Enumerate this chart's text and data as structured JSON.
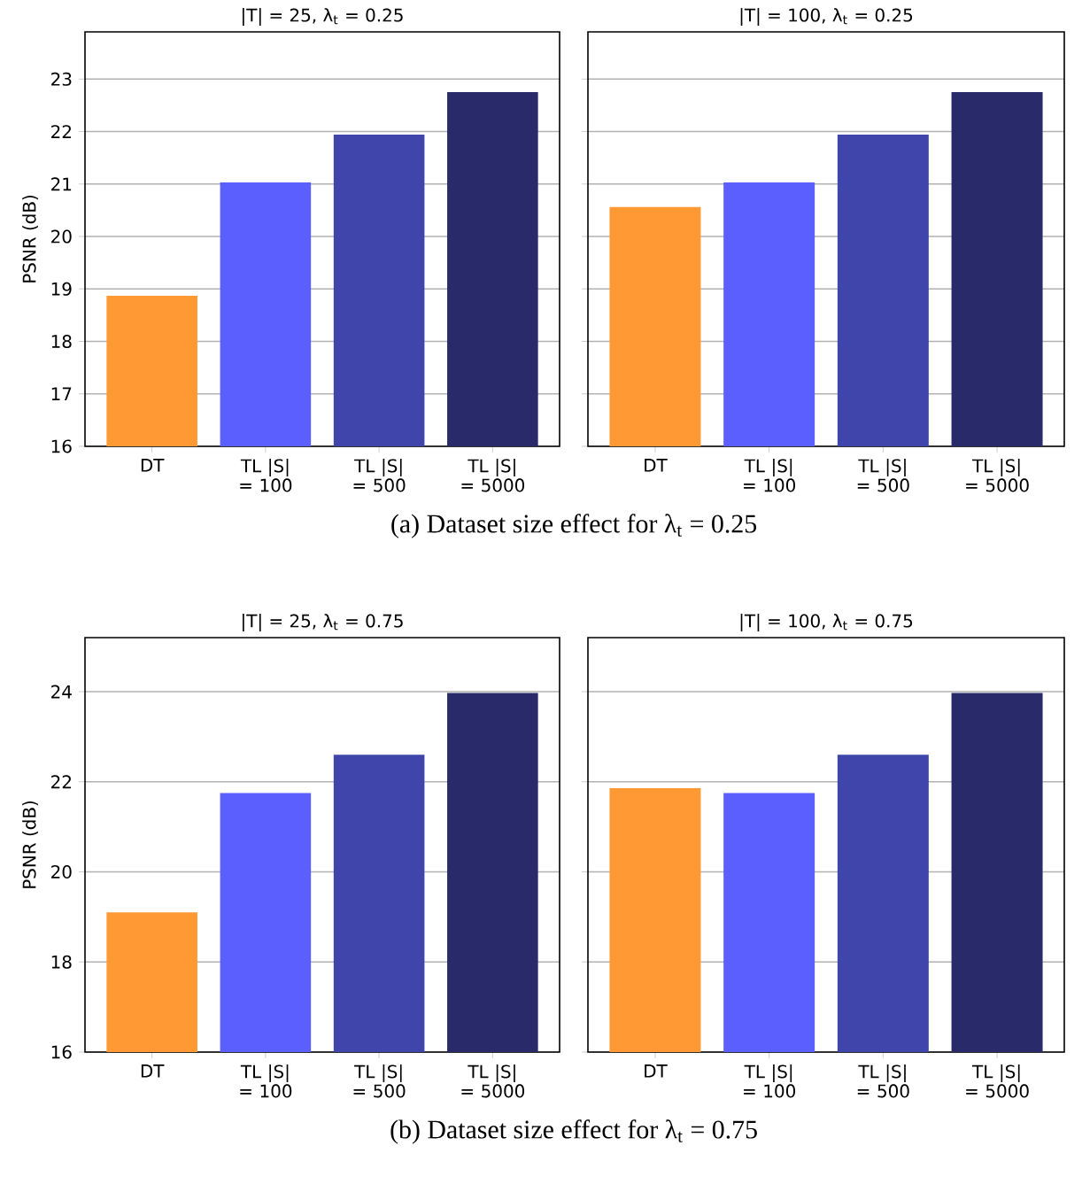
{
  "chart_data": [
    {
      "type": "bar",
      "title": "|T| = 25, λ$_{t}$ = 0.25",
      "ylabel": "PSNR (dB)",
      "categories": [
        "DT",
        "TL |S| = 100",
        "TL |S| = 500",
        "TL |S| = 5000"
      ],
      "values": [
        18.87,
        21.03,
        21.94,
        22.75
      ],
      "colors": [
        "#ff9933",
        "#5b5ffe",
        "#4045ab",
        "#292a6a"
      ],
      "ylim": [
        16,
        23.9
      ],
      "yticks": [
        16,
        17,
        18,
        19,
        20,
        21,
        22,
        23
      ],
      "grid": "y",
      "annotations": [
        "(a) Dataset size effect for λ$_{t}$ = 0.25"
      ]
    },
    {
      "type": "bar",
      "title": "|T| = 100, λ$_{t}$ = 0.25",
      "categories": [
        "DT",
        "TL |S| = 100",
        "TL |S| = 500",
        "TL |S| = 5000"
      ],
      "values": [
        20.56,
        21.03,
        21.94,
        22.75
      ],
      "colors": [
        "#ff9933",
        "#5b5ffe",
        "#4045ab",
        "#292a6a"
      ],
      "ylim": [
        16,
        23.9
      ],
      "yticks": [
        16,
        17,
        18,
        19,
        20,
        21,
        22,
        23
      ],
      "grid": "y",
      "tick_labels": "x"
    },
    {
      "type": "bar",
      "title": "|T| = 25, λ$_{t}$ = 0.75",
      "ylabel": "PSNR (dB)",
      "categories": [
        "DT",
        "TL |S| = 100",
        "TL |S| = 500",
        "TL |S| = 5000"
      ],
      "values": [
        19.1,
        21.75,
        22.6,
        23.97
      ],
      "colors": [
        "#ff9933",
        "#5b5ffe",
        "#4045ab",
        "#292a6a"
      ],
      "ylim": [
        16,
        25.2
      ],
      "yticks": [
        16,
        18,
        20,
        22,
        24
      ],
      "grid": "y",
      "annotations": [
        "(b) Dataset size effect for λ$_{t}$ = 0.75"
      ]
    },
    {
      "type": "bar",
      "title": "|T| = 100, λ$_{t}$ = 0.75",
      "categories": [
        "DT",
        "TL |S| = 100",
        "TL |S| = 500",
        "TL |S| = 5000"
      ],
      "values": [
        21.86,
        21.75,
        22.6,
        23.97
      ],
      "colors": [
        "#ff9933",
        "#5b5ffe",
        "#4045ab",
        "#292a6a"
      ],
      "ylim": [
        16,
        25.2
      ],
      "yticks": [
        16,
        18,
        20,
        22,
        24
      ],
      "grid": "y",
      "tick_labels": "x"
    }
  ]
}
